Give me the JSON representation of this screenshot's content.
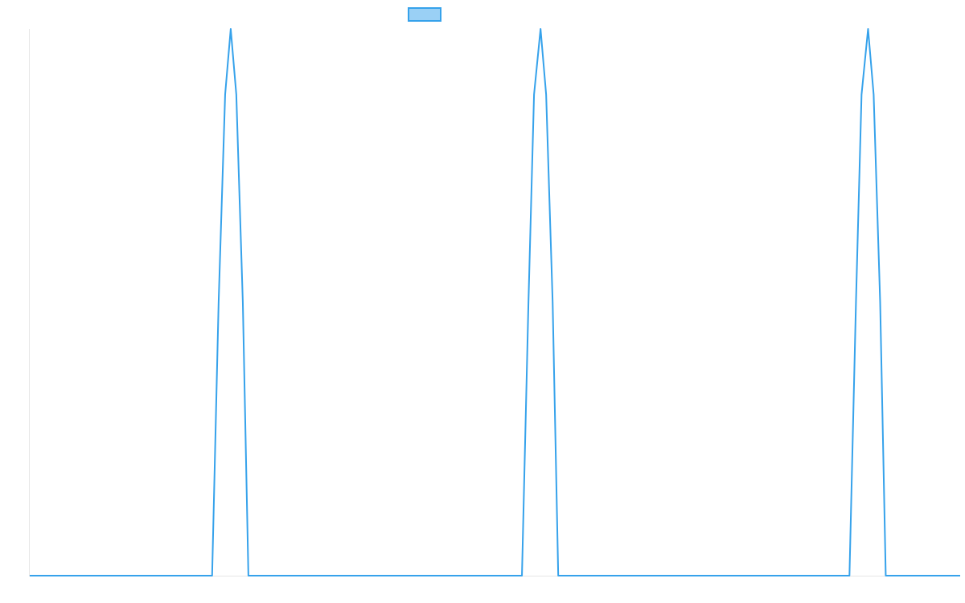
{
  "chart_data": {
    "type": "line",
    "title": "",
    "xlabel": "",
    "ylabel": "",
    "xlim": [
      0,
      100
    ],
    "ylim": [
      0,
      1
    ],
    "grid": false,
    "legend_position": "top-center",
    "series": [
      {
        "color": "#36a2eb",
        "fill": "#9ad0f5",
        "points": [
          [
            0,
            0
          ],
          [
            19.6,
            0
          ],
          [
            20.3,
            0.5
          ],
          [
            21.0,
            0.88
          ],
          [
            21.6,
            1.0
          ],
          [
            22.2,
            0.88
          ],
          [
            22.9,
            0.5
          ],
          [
            23.5,
            0
          ],
          [
            52.9,
            0
          ],
          [
            53.6,
            0.5
          ],
          [
            54.2,
            0.88
          ],
          [
            54.9,
            1.0
          ],
          [
            55.5,
            0.88
          ],
          [
            56.2,
            0.5
          ],
          [
            56.8,
            0
          ],
          [
            88.1,
            0
          ],
          [
            88.8,
            0.5
          ],
          [
            89.4,
            0.88
          ],
          [
            90.1,
            1.0
          ],
          [
            90.7,
            0.88
          ],
          [
            91.4,
            0.5
          ],
          [
            92.0,
            0
          ],
          [
            100,
            0
          ]
        ]
      }
    ]
  }
}
